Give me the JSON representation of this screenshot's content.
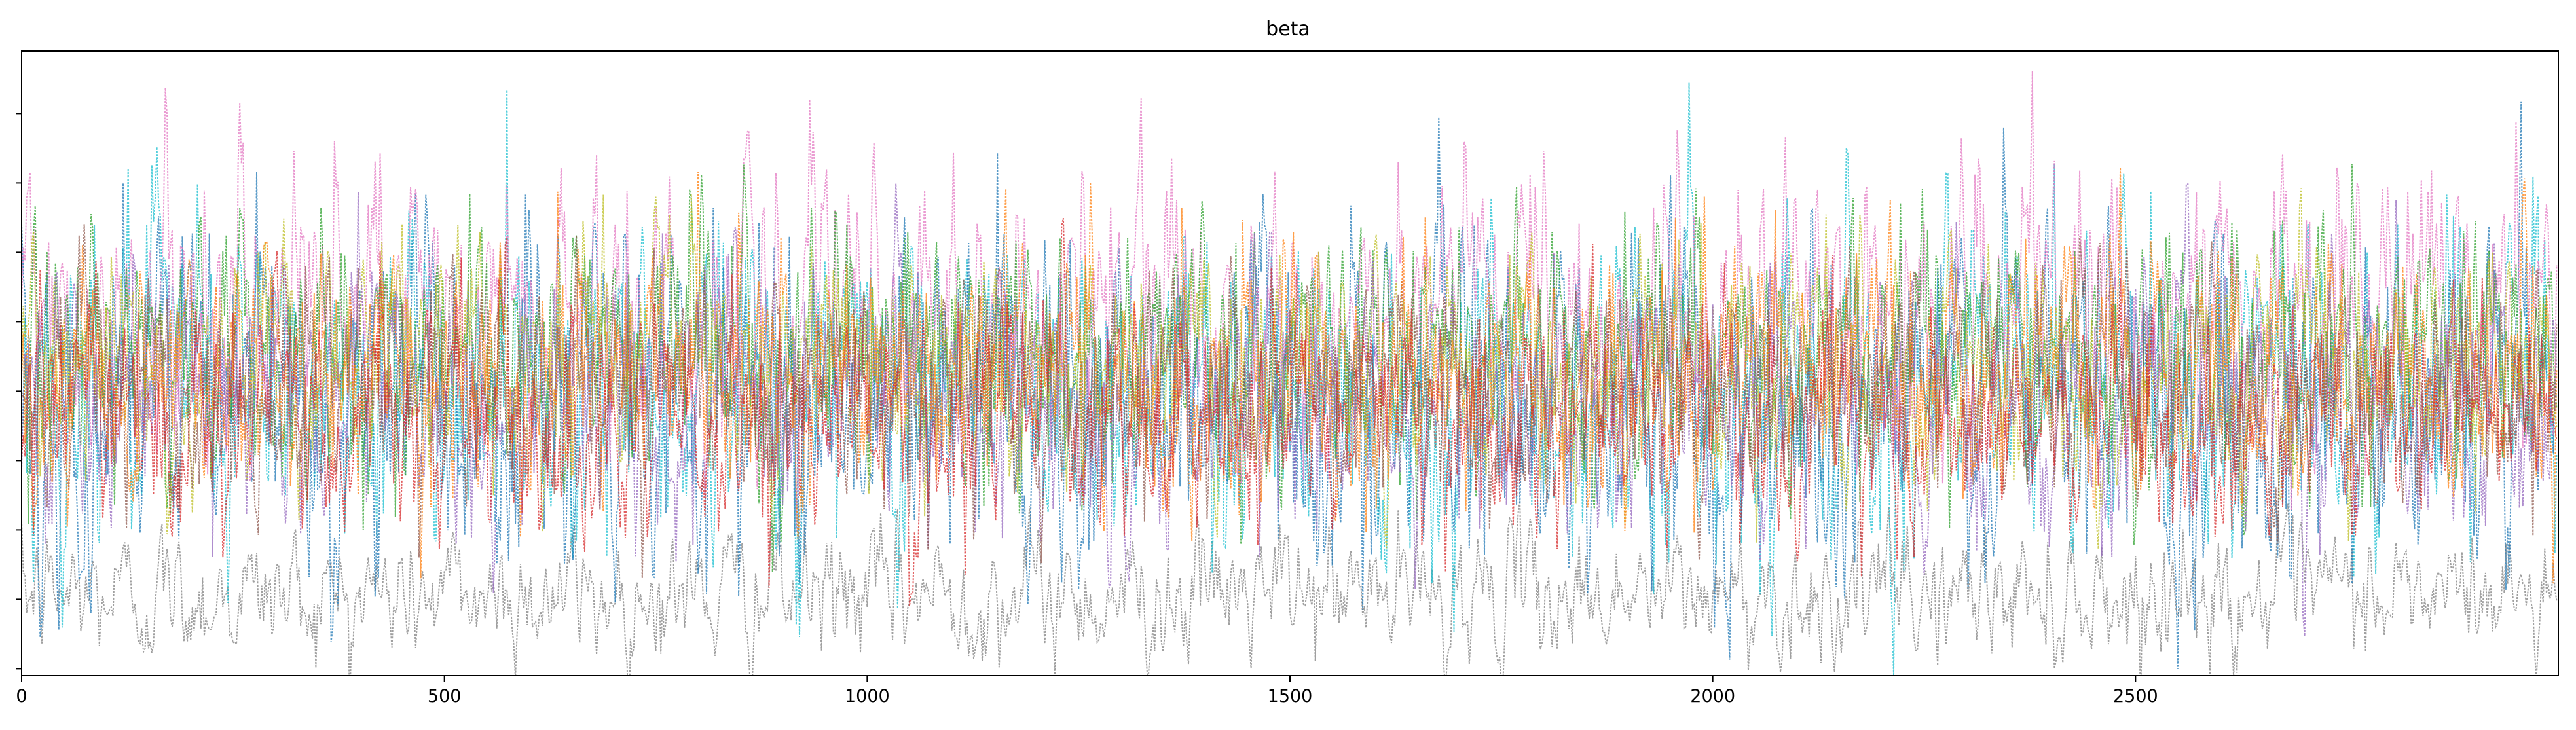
{
  "chart_data": {
    "type": "line",
    "title": "beta",
    "xlabel": "",
    "ylabel": "",
    "xlim": [
      0,
      3000
    ],
    "ylim": [
      0,
      1
    ],
    "x_ticks": [
      0,
      500,
      1000,
      1500,
      2000,
      2500
    ],
    "x_tick_labels": [
      "0",
      "500",
      "1000",
      "1500",
      "2000",
      "2500"
    ],
    "y_tick_count": 9,
    "y_tick_labels_visible": false,
    "legend": "none",
    "grid": false,
    "n_samples": 3000,
    "line_style": "dotted",
    "series_color_palette": [
      "#1f77b4",
      "#ff7f0e",
      "#2ca02c",
      "#d62728",
      "#9467bd",
      "#8c564b",
      "#e377c2",
      "#7f7f7f",
      "#bcbd22",
      "#17becf"
    ],
    "series": [
      {
        "color": "#7f7f7f",
        "mean": 0.13,
        "spread": 0.05
      },
      {
        "color": "#17becf",
        "mean": 0.47,
        "spread": 0.13
      },
      {
        "color": "#1f77b4",
        "mean": 0.45,
        "spread": 0.14
      },
      {
        "color": "#e377c2",
        "mean": 0.58,
        "spread": 0.11
      },
      {
        "color": "#2ca02c",
        "mean": 0.52,
        "spread": 0.1
      },
      {
        "color": "#bcbd22",
        "mean": 0.5,
        "spread": 0.09
      },
      {
        "color": "#9467bd",
        "mean": 0.44,
        "spread": 0.1
      },
      {
        "color": "#8c564b",
        "mean": 0.46,
        "spread": 0.09
      },
      {
        "color": "#ff7f0e",
        "mean": 0.48,
        "spread": 0.1
      },
      {
        "color": "#d62728",
        "mean": 0.42,
        "spread": 0.09
      }
    ]
  }
}
